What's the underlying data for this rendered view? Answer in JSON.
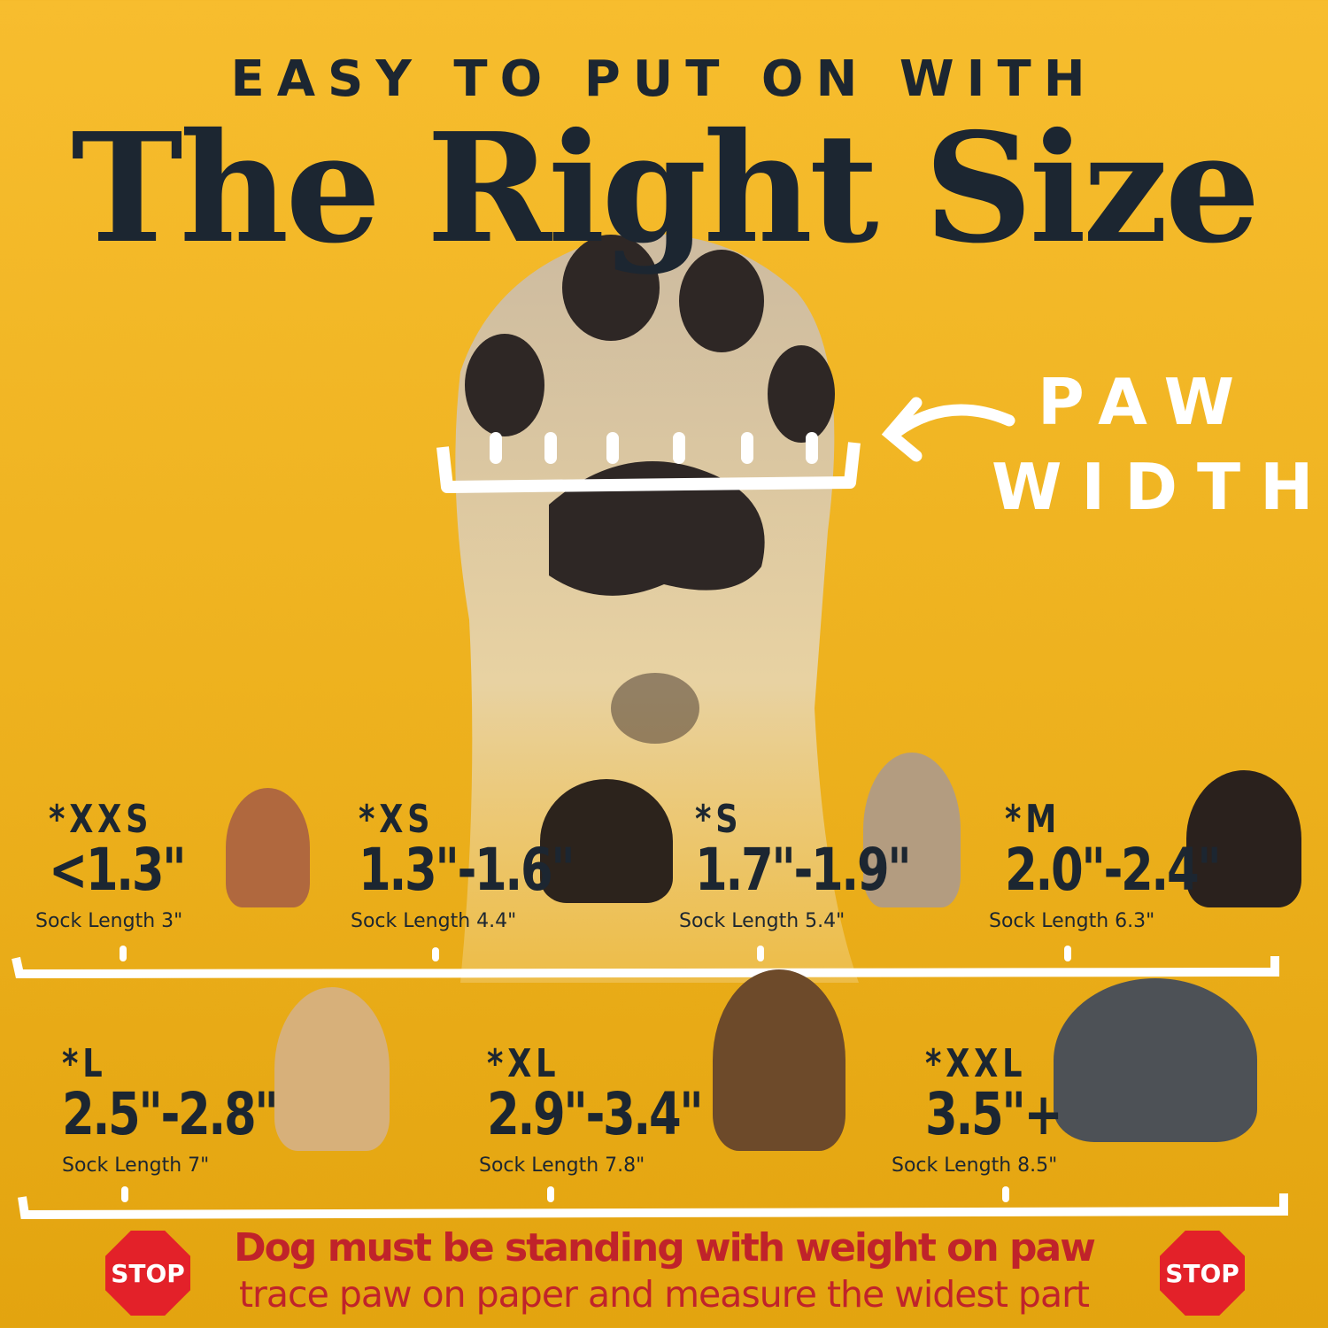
{
  "header": {
    "subtitle": "EASY TO PUT ON WITH",
    "title": "The Right Size"
  },
  "measure_label": {
    "line1": "PAW",
    "line2": "WIDTH"
  },
  "sizes": [
    {
      "code": "*XXS",
      "range": "<1.3\"",
      "sock": "Sock Length 3\"",
      "dog": "chihuahua-icon"
    },
    {
      "code": "*XS",
      "range": "1.3\"-1.6\"",
      "sock": "Sock Length 4.4\"",
      "dog": "yorkie-icon"
    },
    {
      "code": "*S",
      "range": "1.7\"-1.9\"",
      "sock": "Sock Length 5.4\"",
      "dog": "french-bulldog-icon"
    },
    {
      "code": "*M",
      "range": "2.0\"-2.4\"",
      "sock": "Sock Length 6.3\"",
      "dog": "bernese-icon"
    },
    {
      "code": "*L",
      "range": "2.5\"-2.8\"",
      "sock": "Sock Length 7\"",
      "dog": "golden-retriever-icon"
    },
    {
      "code": "*XL",
      "range": "2.9\"-3.4\"",
      "sock": "Sock Length 7.8\"",
      "dog": "german-shepherd-icon"
    },
    {
      "code": "*XXL",
      "range": "3.5\"+",
      "sock": "Sock Length 8.5\"",
      "dog": "great-dane-icon"
    }
  ],
  "warning": {
    "line1": "Dog must be standing with weight on paw",
    "line2": "trace paw on paper and measure the widest part",
    "stop": "STOP"
  },
  "colors": {
    "background": "#f0b220",
    "text": "#1c2631",
    "warning": "#c0232a",
    "stop_sign": "#e32129"
  }
}
